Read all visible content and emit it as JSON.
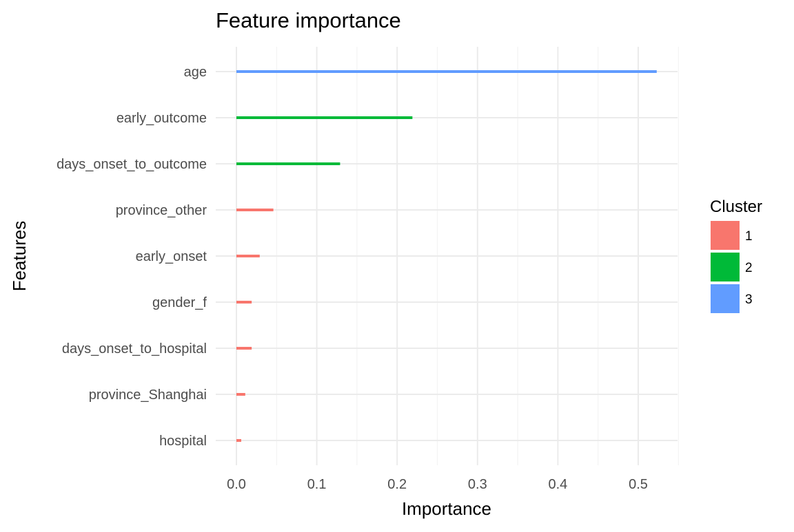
{
  "chart_data": {
    "type": "bar",
    "orientation": "horizontal",
    "title": "Feature importance",
    "xlabel": "Importance",
    "ylabel": "Features",
    "xlim": [
      0,
      0.55
    ],
    "x_ticks": [
      0.0,
      0.1,
      0.2,
      0.3,
      0.4,
      0.5
    ],
    "x_tick_labels": [
      "0.0",
      "0.1",
      "0.2",
      "0.3",
      "0.4",
      "0.5"
    ],
    "grid": true,
    "categories": [
      "age",
      "early_outcome",
      "days_onset_to_outcome",
      "province_other",
      "early_onset",
      "gender_f",
      "days_onset_to_hospital",
      "province_Shanghai",
      "hospital"
    ],
    "values": [
      0.523,
      0.219,
      0.129,
      0.046,
      0.029,
      0.019,
      0.019,
      0.011,
      0.006
    ],
    "cluster": [
      "3",
      "2",
      "2",
      "1",
      "1",
      "1",
      "1",
      "1",
      "1"
    ],
    "legend": {
      "title": "Cluster",
      "position": "right",
      "entries": [
        {
          "label": "1",
          "color": "#F8766D"
        },
        {
          "label": "2",
          "color": "#00BA38"
        },
        {
          "label": "3",
          "color": "#619CFF"
        }
      ]
    }
  }
}
